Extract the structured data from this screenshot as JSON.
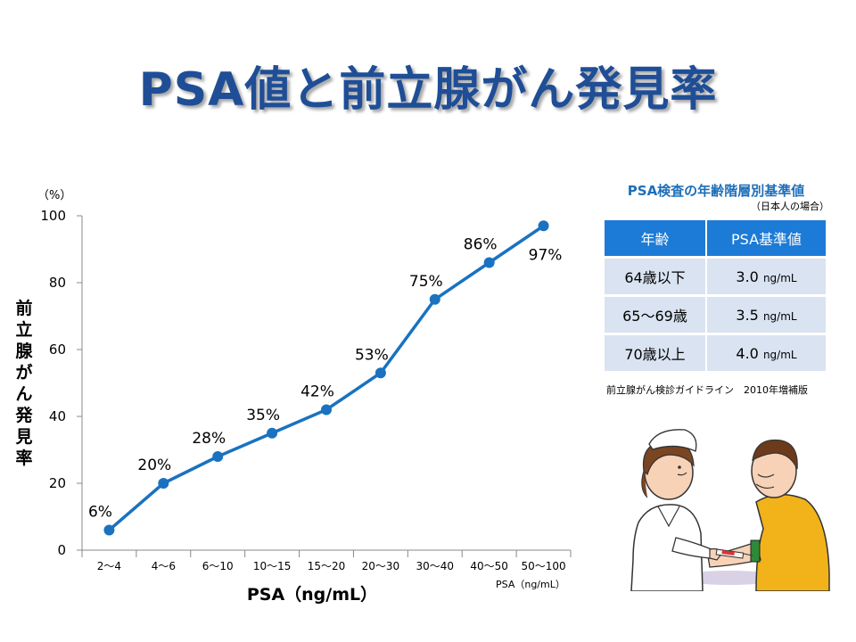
{
  "slide": {
    "title": "PSA値と前立腺がん発見率"
  },
  "chart_data": {
    "type": "line",
    "categories": [
      "2～4",
      "4～6",
      "6～10",
      "10～15",
      "15～20",
      "20～30",
      "30～40",
      "40～50",
      "50～100"
    ],
    "series": [
      {
        "values": [
          6,
          20,
          28,
          35,
          42,
          53,
          75,
          86,
          97
        ]
      }
    ],
    "data_labels": [
      "6%",
      "20%",
      "28%",
      "35%",
      "42%",
      "53%",
      "75%",
      "86%",
      "97%"
    ],
    "y_ticks": [
      "0",
      "20",
      "40",
      "60",
      "80",
      "100"
    ],
    "y_tick_values": [
      0,
      20,
      40,
      60,
      80,
      100
    ],
    "ylim": [
      0,
      100
    ],
    "y_unit": "（%）",
    "ylabel": "前立腺がん発見率",
    "xlabel": "PSA（ng/mL）",
    "x_unit": "PSA（ng/mL）",
    "grid": false,
    "line_color": "#1a72c0"
  },
  "reference_table": {
    "title": "PSA検査の年齢階層別基準値",
    "subtitle": "（日本人の場合）",
    "headers": [
      "年齢",
      "PSA基準値"
    ],
    "rows": [
      {
        "age": "64歳以下",
        "value": "3.0",
        "unit": "ng/mL"
      },
      {
        "age": "65～69歳",
        "value": "3.5",
        "unit": "ng/mL"
      },
      {
        "age": "70歳以上",
        "value": "4.0",
        "unit": "ng/mL"
      }
    ],
    "source": "前立腺がん検診ガイドライン　2010年増補版",
    "header_color": "#1c7bd6",
    "row_color": "#d9e3f1"
  }
}
